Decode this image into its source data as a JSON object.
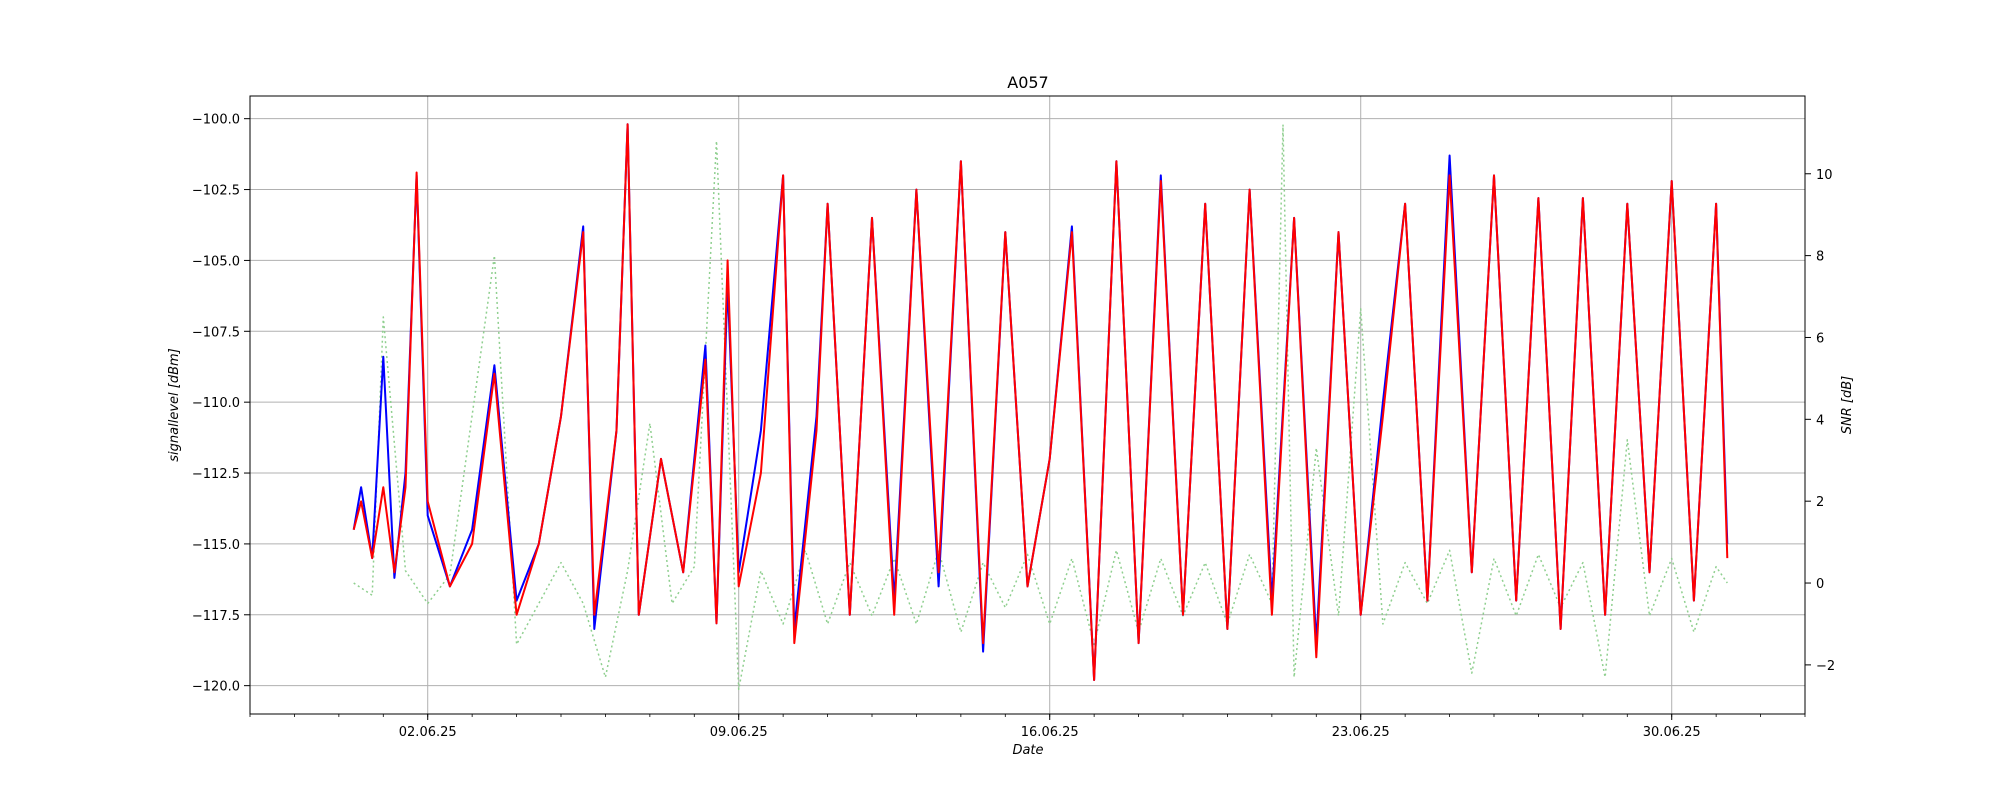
{
  "chart_data": {
    "type": "line",
    "title": "A057",
    "xlabel": "Date",
    "ylabel": "signallevel [dBm]",
    "y2label": "SNR [dB]",
    "x_range": [
      "2025-05-29",
      "2025-07-03"
    ],
    "x_ticks": [
      {
        "date": "2025-06-02",
        "label": "02.06.25"
      },
      {
        "date": "2025-06-09",
        "label": "09.06.25"
      },
      {
        "date": "2025-06-16",
        "label": "16.06.25"
      },
      {
        "date": "2025-06-23",
        "label": "23.06.25"
      },
      {
        "date": "2025-06-30",
        "label": "30.06.25"
      }
    ],
    "ylim": [
      -121,
      -99.2
    ],
    "y_ticks": [
      {
        "value": -100,
        "label": "−100.0"
      },
      {
        "value": -102.5,
        "label": "−102.5"
      },
      {
        "value": -105,
        "label": "−105.0"
      },
      {
        "value": -107.5,
        "label": "−107.5"
      },
      {
        "value": -110,
        "label": "−110.0"
      },
      {
        "value": -112.5,
        "label": "−112.5"
      },
      {
        "value": -115,
        "label": "−115.0"
      },
      {
        "value": -117.5,
        "label": "−117.5"
      },
      {
        "value": -120,
        "label": "−120.0"
      }
    ],
    "y2lim": [
      -3.2,
      11.9
    ],
    "y2_ticks": [
      {
        "value": 10,
        "label": "10"
      },
      {
        "value": 8,
        "label": "8"
      },
      {
        "value": 6,
        "label": "6"
      },
      {
        "value": 4,
        "label": "4"
      },
      {
        "value": 2,
        "label": "2"
      },
      {
        "value": 0,
        "label": "0"
      },
      {
        "value": -2,
        "label": "−2"
      }
    ],
    "grid": true,
    "series": [
      {
        "axis": "left",
        "color": "#0000ff",
        "style": "solid",
        "points": [
          [
            "2025-05-31 08:00",
            -114.5
          ],
          [
            "2025-05-31 12:00",
            -113.0
          ],
          [
            "2025-05-31 18:00",
            -115.5
          ],
          [
            "2025-06-01 00:00",
            -108.4
          ],
          [
            "2025-06-01 06:00",
            -116.2
          ],
          [
            "2025-06-01 12:00",
            -112.5
          ],
          [
            "2025-06-01 18:00",
            -102.0
          ],
          [
            "2025-06-02 00:00",
            -114.0
          ],
          [
            "2025-06-02 12:00",
            -116.5
          ],
          [
            "2025-06-03 00:00",
            -114.5
          ],
          [
            "2025-06-03 12:00",
            -108.7
          ],
          [
            "2025-06-04 00:00",
            -117.0
          ],
          [
            "2025-06-04 12:00",
            -115.0
          ],
          [
            "2025-06-05 00:00",
            -110.5
          ],
          [
            "2025-06-05 12:00",
            -103.8
          ],
          [
            "2025-06-05 18:00",
            -118.0
          ],
          [
            "2025-06-06 06:00",
            -111.0
          ],
          [
            "2025-06-06 12:00",
            -100.2
          ],
          [
            "2025-06-06 18:00",
            -117.5
          ],
          [
            "2025-06-07 06:00",
            -112.0
          ],
          [
            "2025-06-07 18:00",
            -116.0
          ],
          [
            "2025-06-08 06:00",
            -108.0
          ],
          [
            "2025-06-08 12:00",
            -117.8
          ],
          [
            "2025-06-08 18:00",
            -105.8
          ],
          [
            "2025-06-09 00:00",
            -116.0
          ],
          [
            "2025-06-09 12:00",
            -111.0
          ],
          [
            "2025-06-10 00:00",
            -102.0
          ],
          [
            "2025-06-10 06:00",
            -118.0
          ],
          [
            "2025-06-10 18:00",
            -110.5
          ],
          [
            "2025-06-11 00:00",
            -103.0
          ],
          [
            "2025-06-11 12:00",
            -117.5
          ],
          [
            "2025-06-12 00:00",
            -103.5
          ],
          [
            "2025-06-12 12:00",
            -117.0
          ],
          [
            "2025-06-13 00:00",
            -102.5
          ],
          [
            "2025-06-13 12:00",
            -116.5
          ],
          [
            "2025-06-14 00:00",
            -101.5
          ],
          [
            "2025-06-14 12:00",
            -118.8
          ],
          [
            "2025-06-15 00:00",
            -104.0
          ],
          [
            "2025-06-15 12:00",
            -116.5
          ],
          [
            "2025-06-16 00:00",
            -112.0
          ],
          [
            "2025-06-16 12:00",
            -103.8
          ],
          [
            "2025-06-17 00:00",
            -119.8
          ],
          [
            "2025-06-17 12:00",
            -101.5
          ],
          [
            "2025-06-18 00:00",
            -118.5
          ],
          [
            "2025-06-18 12:00",
            -102.0
          ],
          [
            "2025-06-19 00:00",
            -117.5
          ],
          [
            "2025-06-19 12:00",
            -103.0
          ],
          [
            "2025-06-20 00:00",
            -118.0
          ],
          [
            "2025-06-20 12:00",
            -102.5
          ],
          [
            "2025-06-21 00:00",
            -117.0
          ],
          [
            "2025-06-21 12:00",
            -103.5
          ],
          [
            "2025-06-22 00:00",
            -118.5
          ],
          [
            "2025-06-22 12:00",
            -104.0
          ],
          [
            "2025-06-23 00:00",
            -117.5
          ],
          [
            "2025-06-23 12:00",
            -110.0
          ],
          [
            "2025-06-24 00:00",
            -103.0
          ],
          [
            "2025-06-24 12:00",
            -117.0
          ],
          [
            "2025-06-25 00:00",
            -101.3
          ],
          [
            "2025-06-25 12:00",
            -116.0
          ],
          [
            "2025-06-26 00:00",
            -102.0
          ],
          [
            "2025-06-26 12:00",
            -117.0
          ],
          [
            "2025-06-27 00:00",
            -102.8
          ],
          [
            "2025-06-27 12:00",
            -118.0
          ],
          [
            "2025-06-28 00:00",
            -102.8
          ],
          [
            "2025-06-28 12:00",
            -117.5
          ],
          [
            "2025-06-29 00:00",
            -103.0
          ],
          [
            "2025-06-29 12:00",
            -116.0
          ],
          [
            "2025-06-30 00:00",
            -102.2
          ],
          [
            "2025-06-30 12:00",
            -117.0
          ],
          [
            "2025-07-01 00:00",
            -103.0
          ],
          [
            "2025-07-01 06:00",
            -115.0
          ]
        ]
      },
      {
        "axis": "left",
        "color": "#ff0000",
        "style": "solid",
        "points": [
          [
            "2025-05-31 08:00",
            -114.5
          ],
          [
            "2025-05-31 12:00",
            -113.5
          ],
          [
            "2025-05-31 18:00",
            -115.5
          ],
          [
            "2025-06-01 00:00",
            -113.0
          ],
          [
            "2025-06-01 06:00",
            -116.0
          ],
          [
            "2025-06-01 12:00",
            -113.0
          ],
          [
            "2025-06-01 18:00",
            -101.9
          ],
          [
            "2025-06-02 00:00",
            -113.5
          ],
          [
            "2025-06-02 12:00",
            -116.5
          ],
          [
            "2025-06-03 00:00",
            -115.0
          ],
          [
            "2025-06-03 12:00",
            -109.0
          ],
          [
            "2025-06-04 00:00",
            -117.5
          ],
          [
            "2025-06-04 12:00",
            -115.0
          ],
          [
            "2025-06-05 00:00",
            -110.5
          ],
          [
            "2025-06-05 12:00",
            -104.0
          ],
          [
            "2025-06-05 18:00",
            -117.5
          ],
          [
            "2025-06-06 06:00",
            -111.0
          ],
          [
            "2025-06-06 12:00",
            -100.2
          ],
          [
            "2025-06-06 18:00",
            -117.5
          ],
          [
            "2025-06-07 06:00",
            -112.0
          ],
          [
            "2025-06-07 18:00",
            -116.0
          ],
          [
            "2025-06-08 06:00",
            -108.5
          ],
          [
            "2025-06-08 12:00",
            -117.8
          ],
          [
            "2025-06-08 18:00",
            -105.0
          ],
          [
            "2025-06-09 00:00",
            -116.5
          ],
          [
            "2025-06-09 12:00",
            -112.5
          ],
          [
            "2025-06-10 00:00",
            -102.0
          ],
          [
            "2025-06-10 06:00",
            -118.5
          ],
          [
            "2025-06-10 18:00",
            -111.0
          ],
          [
            "2025-06-11 00:00",
            -103.0
          ],
          [
            "2025-06-11 12:00",
            -117.5
          ],
          [
            "2025-06-12 00:00",
            -103.5
          ],
          [
            "2025-06-12 12:00",
            -117.5
          ],
          [
            "2025-06-13 00:00",
            -102.5
          ],
          [
            "2025-06-13 12:00",
            -116.0
          ],
          [
            "2025-06-14 00:00",
            -101.5
          ],
          [
            "2025-06-14 12:00",
            -118.5
          ],
          [
            "2025-06-15 00:00",
            -104.0
          ],
          [
            "2025-06-15 12:00",
            -116.5
          ],
          [
            "2025-06-16 00:00",
            -112.0
          ],
          [
            "2025-06-16 12:00",
            -104.0
          ],
          [
            "2025-06-17 00:00",
            -119.8
          ],
          [
            "2025-06-17 12:00",
            -101.5
          ],
          [
            "2025-06-18 00:00",
            -118.5
          ],
          [
            "2025-06-18 12:00",
            -102.2
          ],
          [
            "2025-06-19 00:00",
            -117.5
          ],
          [
            "2025-06-19 12:00",
            -103.0
          ],
          [
            "2025-06-20 00:00",
            -118.0
          ],
          [
            "2025-06-20 12:00",
            -102.5
          ],
          [
            "2025-06-21 00:00",
            -117.5
          ],
          [
            "2025-06-21 12:00",
            -103.5
          ],
          [
            "2025-06-22 00:00",
            -119.0
          ],
          [
            "2025-06-22 12:00",
            -104.0
          ],
          [
            "2025-06-23 00:00",
            -117.5
          ],
          [
            "2025-06-23 12:00",
            -110.5
          ],
          [
            "2025-06-24 00:00",
            -103.0
          ],
          [
            "2025-06-24 12:00",
            -117.0
          ],
          [
            "2025-06-25 00:00",
            -102.0
          ],
          [
            "2025-06-25 12:00",
            -116.0
          ],
          [
            "2025-06-26 00:00",
            -102.0
          ],
          [
            "2025-06-26 12:00",
            -117.0
          ],
          [
            "2025-06-27 00:00",
            -102.8
          ],
          [
            "2025-06-27 12:00",
            -118.0
          ],
          [
            "2025-06-28 00:00",
            -102.8
          ],
          [
            "2025-06-28 12:00",
            -117.5
          ],
          [
            "2025-06-29 00:00",
            -103.0
          ],
          [
            "2025-06-29 12:00",
            -116.0
          ],
          [
            "2025-06-30 00:00",
            -102.2
          ],
          [
            "2025-06-30 12:00",
            -117.0
          ],
          [
            "2025-07-01 00:00",
            -103.0
          ],
          [
            "2025-07-01 06:00",
            -115.5
          ]
        ]
      },
      {
        "axis": "right",
        "color": "#8fcf8f",
        "style": "dotted",
        "points": [
          [
            "2025-05-31 08:00",
            0.0
          ],
          [
            "2025-05-31 18:00",
            -0.3
          ],
          [
            "2025-06-01 00:00",
            6.5
          ],
          [
            "2025-06-01 12:00",
            0.3
          ],
          [
            "2025-06-02 00:00",
            -0.5
          ],
          [
            "2025-06-02 12:00",
            0.2
          ],
          [
            "2025-06-03 12:00",
            8.0
          ],
          [
            "2025-06-04 00:00",
            -1.5
          ],
          [
            "2025-06-05 00:00",
            0.5
          ],
          [
            "2025-06-05 12:00",
            -0.5
          ],
          [
            "2025-06-06 00:00",
            -2.3
          ],
          [
            "2025-06-06 12:00",
            0.3
          ],
          [
            "2025-06-07 00:00",
            3.9
          ],
          [
            "2025-06-07 12:00",
            -0.5
          ],
          [
            "2025-06-08 00:00",
            0.4
          ],
          [
            "2025-06-08 12:00",
            10.8
          ],
          [
            "2025-06-09 00:00",
            -2.6
          ],
          [
            "2025-06-09 12:00",
            0.3
          ],
          [
            "2025-06-10 00:00",
            -1.0
          ],
          [
            "2025-06-10 12:00",
            0.8
          ],
          [
            "2025-06-11 00:00",
            -1.0
          ],
          [
            "2025-06-11 12:00",
            0.5
          ],
          [
            "2025-06-12 00:00",
            -0.8
          ],
          [
            "2025-06-12 12:00",
            0.6
          ],
          [
            "2025-06-13 00:00",
            -1.0
          ],
          [
            "2025-06-13 12:00",
            0.8
          ],
          [
            "2025-06-14 00:00",
            -1.2
          ],
          [
            "2025-06-14 12:00",
            0.5
          ],
          [
            "2025-06-15 00:00",
            -0.6
          ],
          [
            "2025-06-15 12:00",
            0.7
          ],
          [
            "2025-06-16 00:00",
            -1.0
          ],
          [
            "2025-06-16 12:00",
            0.6
          ],
          [
            "2025-06-17 00:00",
            -1.5
          ],
          [
            "2025-06-17 12:00",
            0.8
          ],
          [
            "2025-06-18 00:00",
            -1.2
          ],
          [
            "2025-06-18 12:00",
            0.6
          ],
          [
            "2025-06-19 00:00",
            -0.8
          ],
          [
            "2025-06-19 12:00",
            0.5
          ],
          [
            "2025-06-20 00:00",
            -1.0
          ],
          [
            "2025-06-20 12:00",
            0.7
          ],
          [
            "2025-06-21 00:00",
            -0.5
          ],
          [
            "2025-06-21 06:00",
            11.2
          ],
          [
            "2025-06-21 12:00",
            -2.3
          ],
          [
            "2025-06-22 00:00",
            3.3
          ],
          [
            "2025-06-22 12:00",
            -0.8
          ],
          [
            "2025-06-23 00:00",
            6.7
          ],
          [
            "2025-06-23 12:00",
            -1.0
          ],
          [
            "2025-06-24 00:00",
            0.5
          ],
          [
            "2025-06-24 12:00",
            -0.5
          ],
          [
            "2025-06-25 00:00",
            0.8
          ],
          [
            "2025-06-25 12:00",
            -2.2
          ],
          [
            "2025-06-26 00:00",
            0.6
          ],
          [
            "2025-06-26 12:00",
            -0.8
          ],
          [
            "2025-06-27 00:00",
            0.7
          ],
          [
            "2025-06-27 12:00",
            -0.6
          ],
          [
            "2025-06-28 00:00",
            0.5
          ],
          [
            "2025-06-28 12:00",
            -2.3
          ],
          [
            "2025-06-29 00:00",
            3.5
          ],
          [
            "2025-06-29 12:00",
            -0.8
          ],
          [
            "2025-06-30 00:00",
            0.6
          ],
          [
            "2025-06-30 12:00",
            -1.2
          ],
          [
            "2025-07-01 00:00",
            0.4
          ],
          [
            "2025-07-01 06:00",
            0.0
          ]
        ]
      }
    ]
  }
}
